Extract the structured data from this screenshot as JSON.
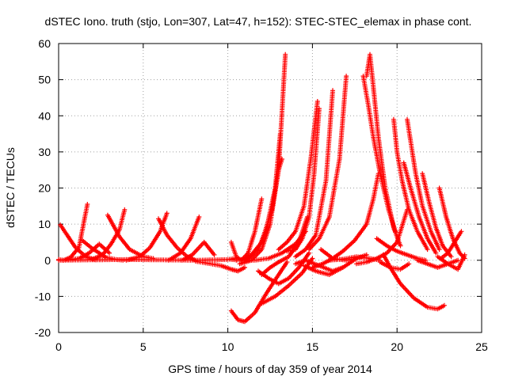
{
  "chart_data": {
    "type": "scatter",
    "title": "dSTEC Iono. truth (stjo, Lon=307, Lat=47, h=152): STEC-STEC_elemax in phase cont.",
    "xlabel": "GPS time / hours of day 359 of year 2014",
    "ylabel": "dSTEC  / TECUs",
    "xlim": [
      0,
      25
    ],
    "ylim": [
      -20,
      60
    ],
    "xticks": [
      0,
      5,
      10,
      15,
      20,
      25
    ],
    "yticks": [
      -20,
      -10,
      0,
      10,
      20,
      30,
      40,
      50,
      60
    ],
    "grid": true,
    "marker": "+",
    "color": "#ff0000",
    "series": [
      {
        "x": [
          0.0,
          0.3,
          0.7,
          1.2,
          1.7
        ],
        "y": [
          0.2,
          0.0,
          0.8,
          3.5,
          15.5
        ]
      },
      {
        "x": [
          0.1,
          0.5,
          1.0,
          1.6,
          2.2
        ],
        "y": [
          9.8,
          7.0,
          3.5,
          1.0,
          0.1
        ]
      },
      {
        "x": [
          0.5,
          1.2,
          1.8,
          2.4,
          3.0
        ],
        "y": [
          0.1,
          0.5,
          2.0,
          4.5,
          2.0
        ]
      },
      {
        "x": [
          1.4,
          2.0,
          2.8,
          3.4,
          3.8
        ],
        "y": [
          5.5,
          3.2,
          0.8,
          0.2,
          0.0
        ]
      },
      {
        "x": [
          2.0,
          2.6,
          3.1,
          3.6,
          3.9
        ],
        "y": [
          0.3,
          1.5,
          4.5,
          8.5,
          14.0
        ]
      },
      {
        "x": [
          2.9,
          3.6,
          4.2,
          5.0,
          5.6
        ],
        "y": [
          12.5,
          6.5,
          3.0,
          1.0,
          0.5
        ]
      },
      {
        "x": [
          4.0,
          4.8,
          5.4,
          6.0,
          6.4
        ],
        "y": [
          0.0,
          1.0,
          3.5,
          8.0,
          13.0
        ]
      },
      {
        "x": [
          5.9,
          6.4,
          7.0,
          7.6,
          8.1
        ],
        "y": [
          11.5,
          7.0,
          3.5,
          1.0,
          0.0
        ]
      },
      {
        "x": [
          6.5,
          7.2,
          7.8,
          8.3
        ],
        "y": [
          0.0,
          2.0,
          6.0,
          12.0
        ]
      },
      {
        "x": [
          7.3,
          7.9,
          8.6,
          9.2
        ],
        "y": [
          0.0,
          1.5,
          5.0,
          1.5
        ]
      },
      {
        "x": [
          8.1,
          8.5,
          9.0,
          9.6,
          10.2,
          10.6,
          11.0
        ],
        "y": [
          -0.3,
          -0.6,
          -1.0,
          -1.5,
          -2.5,
          -3.0,
          -2.0
        ]
      },
      {
        "x": [
          0.0,
          2.0,
          4.0,
          6.0,
          8.0,
          10.0,
          10.4
        ],
        "y": [
          0.0,
          0.1,
          0.2,
          0.1,
          0.0,
          0.2,
          0.5
        ]
      },
      {
        "x": [
          10.2,
          10.5,
          10.8,
          11.2,
          11.6,
          12.0
        ],
        "y": [
          5.0,
          1.0,
          0.0,
          2.0,
          8.0,
          17.0
        ]
      },
      {
        "x": [
          10.2,
          10.8,
          11.4,
          12.0,
          12.6,
          13.0,
          13.2
        ],
        "y": [
          0.2,
          0.0,
          1.5,
          5.0,
          14.0,
          25.0,
          28.0
        ]
      },
      {
        "x": [
          10.5,
          11.2,
          11.8,
          12.3,
          12.8,
          13.1
        ],
        "y": [
          0.0,
          0.5,
          3.0,
          9.0,
          20.0,
          35.0
        ]
      },
      {
        "x": [
          10.7,
          11.4,
          12.0,
          12.5,
          13.0,
          13.4
        ],
        "y": [
          -1.0,
          0.0,
          3.0,
          10.0,
          25.0,
          57.0
        ]
      },
      {
        "x": [
          10.2,
          10.6,
          11.0,
          11.6,
          12.3,
          13.0,
          13.5
        ],
        "y": [
          -14.0,
          -16.5,
          -17.0,
          -14.5,
          -9.0,
          -4.0,
          -0.5
        ]
      },
      {
        "x": [
          11.0,
          11.6,
          12.4,
          13.2,
          14.0,
          14.6
        ],
        "y": [
          0.0,
          0.0,
          0.5,
          2.0,
          4.5,
          8.0
        ]
      },
      {
        "x": [
          12.0,
          12.5,
          13.0,
          13.6,
          14.2,
          14.7
        ],
        "y": [
          -4.0,
          -2.0,
          -0.5,
          1.0,
          5.0,
          12.0
        ]
      },
      {
        "x": [
          11.8,
          12.4,
          13.0,
          13.6,
          14.2,
          14.8
        ],
        "y": [
          -3.0,
          -5.0,
          -6.5,
          -5.0,
          -2.0,
          2.0
        ]
      },
      {
        "x": [
          12.0,
          12.8,
          13.6,
          14.4,
          15.0
        ],
        "y": [
          -12.0,
          -10.0,
          -7.0,
          -3.5,
          0.5
        ]
      },
      {
        "x": [
          13.0,
          13.5,
          14.0,
          14.5,
          14.9,
          15.3
        ],
        "y": [
          3.0,
          5.0,
          8.0,
          15.0,
          28.0,
          44.0
        ]
      },
      {
        "x": [
          13.5,
          14.0,
          14.4,
          14.8,
          15.1,
          15.4
        ],
        "y": [
          2.5,
          3.0,
          6.0,
          12.0,
          24.0,
          42.0
        ]
      },
      {
        "x": [
          14.0,
          14.6,
          15.2,
          15.8,
          16.2
        ],
        "y": [
          1.0,
          3.0,
          7.0,
          22.0,
          47.0
        ]
      },
      {
        "x": [
          14.8,
          15.4,
          16.0,
          16.6,
          17.0
        ],
        "y": [
          3.0,
          6.0,
          12.0,
          28.0,
          51.0
        ]
      },
      {
        "x": [
          14.0,
          14.6,
          15.4,
          16.2,
          16.8
        ],
        "y": [
          -1.0,
          0.0,
          -1.5,
          -3.0,
          -2.0
        ]
      },
      {
        "x": [
          14.5,
          15.2,
          16.0,
          16.8,
          17.6,
          18.2
        ],
        "y": [
          -1.5,
          -3.0,
          -4.0,
          -2.0,
          0.5,
          1.5
        ]
      },
      {
        "x": [
          15.5,
          16.2,
          17.0,
          17.6
        ],
        "y": [
          3.0,
          0.5,
          0.0,
          0.5
        ]
      },
      {
        "x": [
          16.0,
          16.8,
          17.6,
          18.4,
          19.0
        ],
        "y": [
          0.0,
          0.3,
          1.0,
          0.5,
          0.0
        ]
      },
      {
        "x": [
          15.0,
          15.6,
          16.2,
          16.8,
          17.5,
          18.2,
          18.6,
          18.9
        ],
        "y": [
          -2.0,
          -1.0,
          0.5,
          2.5,
          5.5,
          10.0,
          17.0,
          24.0
        ]
      },
      {
        "x": [
          18.2,
          18.4,
          18.6,
          18.9,
          19.3,
          19.8,
          20.2
        ],
        "y": [
          51.0,
          57.0,
          48.0,
          34.0,
          20.0,
          9.0,
          4.0
        ]
      },
      {
        "x": [
          18.0,
          18.3,
          18.6,
          19.0,
          19.5,
          19.9
        ],
        "y": [
          51.0,
          43.0,
          34.0,
          24.0,
          14.0,
          8.0
        ]
      },
      {
        "x": [
          18.8,
          19.4,
          20.0,
          20.6,
          21.2,
          21.7
        ],
        "y": [
          6.0,
          4.0,
          2.5,
          1.5,
          0.5,
          0.0
        ]
      },
      {
        "x": [
          19.0,
          19.6,
          20.2,
          20.7
        ],
        "y": [
          -0.5,
          -2.0,
          -2.5,
          -1.0
        ]
      },
      {
        "x": [
          17.6,
          18.2,
          18.8,
          19.4,
          20.0,
          20.6
        ],
        "y": [
          -1.0,
          -0.5,
          0.5,
          2.0,
          5.0,
          14.0
        ]
      },
      {
        "x": [
          19.2,
          19.6,
          20.2,
          21.0,
          21.8,
          22.4,
          22.8
        ],
        "y": [
          1.5,
          -2.0,
          -6.5,
          -10.5,
          -13.0,
          -13.5,
          -12.5
        ]
      },
      {
        "x": [
          19.8,
          20.0,
          20.3,
          20.7,
          21.2,
          21.8
        ],
        "y": [
          39.0,
          30.0,
          22.0,
          14.0,
          8.0,
          3.0
        ]
      },
      {
        "x": [
          20.6,
          20.8,
          21.1,
          21.5,
          22.0,
          22.5
        ],
        "y": [
          39.0,
          33.0,
          24.0,
          15.0,
          8.0,
          3.0
        ]
      },
      {
        "x": [
          20.4,
          20.8,
          21.3,
          21.8,
          22.3
        ],
        "y": [
          27.0,
          20.0,
          12.0,
          6.0,
          2.0
        ]
      },
      {
        "x": [
          21.5,
          21.9,
          22.3,
          22.7,
          23.2
        ],
        "y": [
          24.0,
          16.0,
          9.0,
          4.0,
          1.0
        ]
      },
      {
        "x": [
          21.2,
          21.8,
          22.4,
          23.0,
          23.6
        ],
        "y": [
          0.0,
          -1.0,
          -2.0,
          -1.0,
          0.0
        ]
      },
      {
        "x": [
          22.5,
          22.9,
          23.3,
          23.7,
          24.0
        ],
        "y": [
          20.0,
          12.0,
          6.0,
          2.0,
          0.5
        ]
      },
      {
        "x": [
          22.6,
          23.0,
          23.4,
          23.8
        ],
        "y": [
          0.5,
          2.0,
          5.0,
          8.0
        ]
      },
      {
        "x": [
          22.4,
          23.0,
          23.6,
          24.0
        ],
        "y": [
          1.0,
          -1.0,
          -2.5,
          1.5
        ]
      }
    ]
  }
}
